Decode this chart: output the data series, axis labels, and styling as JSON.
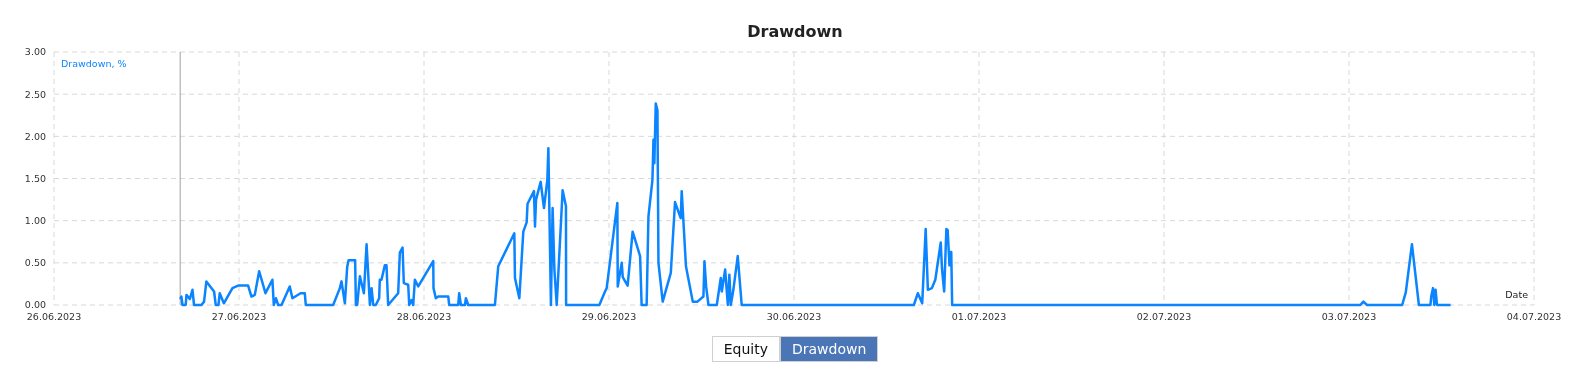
{
  "chart_data": {
    "type": "line",
    "title": "Drawdown",
    "ylabel": "Drawdown, %",
    "xlabel": "Date",
    "annotations": [
      "Equity",
      "Drawdown"
    ],
    "x": [
      "2023-06-26T16:22",
      "2023-06-26T16:32",
      "2023-06-26T16:40",
      "2023-06-26T17:05",
      "2023-06-26T17:11",
      "2023-06-26T17:37",
      "2023-06-26T17:58",
      "2023-06-26T18:10",
      "2023-06-26T19:08",
      "2023-06-26T19:28",
      "2023-06-26T19:46",
      "2023-06-26T20:46",
      "2023-06-26T20:59",
      "2023-06-26T21:20",
      "2023-06-26T21:30",
      "2023-06-26T22:02",
      "2023-06-26T23:09",
      "2023-06-26T23:53",
      "2023-06-27T01:11",
      "2023-06-27T01:37",
      "2023-06-27T02:03",
      "2023-06-27T02:37",
      "2023-06-27T03:26",
      "2023-06-27T04:20",
      "2023-06-27T04:31",
      "2023-06-27T04:47",
      "2023-06-27T05:05",
      "2023-06-27T05:31",
      "2023-06-27T06:35",
      "2023-06-27T06:56",
      "2023-06-27T07:59",
      "2023-06-27T08:32",
      "2023-06-27T08:40",
      "2023-06-27T12:13",
      "2023-06-27T13:05",
      "2023-06-27T13:18",
      "2023-06-27T13:44",
      "2023-06-27T14:02",
      "2023-06-27T14:13",
      "2023-06-27T15:04",
      "2023-06-27T15:10",
      "2023-06-27T15:20",
      "2023-06-27T15:41",
      "2023-06-27T16:12",
      "2023-06-27T16:33",
      "2023-06-27T16:59",
      "2023-06-27T17:12",
      "2023-06-27T17:25",
      "2023-06-27T17:45",
      "2023-06-27T18:11",
      "2023-06-27T18:16",
      "2023-06-27T18:29",
      "2023-06-27T18:55",
      "2023-06-27T19:08",
      "2023-06-27T19:21",
      "2023-06-27T20:39",
      "2023-06-27T20:52",
      "2023-06-27T21:13",
      "2023-06-27T21:23",
      "2023-06-27T21:57",
      "2023-06-27T22:05",
      "2023-06-27T22:23",
      "2023-06-27T22:36",
      "2023-06-27T22:49",
      "2023-06-27T23:15",
      "2023-06-28T01:12",
      "2023-06-28T01:14",
      "2023-06-28T01:32",
      "2023-06-28T01:51",
      "2023-06-28T03:09",
      "2023-06-28T03:16",
      "2023-06-28T04:26",
      "2023-06-28T04:34",
      "2023-06-28T04:47",
      "2023-06-28T05:19",
      "2023-06-28T05:26",
      "2023-06-28T05:44",
      "2023-06-28T09:12",
      "2023-06-28T09:38",
      "2023-06-28T11:43",
      "2023-06-28T11:48",
      "2023-06-28T12:22",
      "2023-06-28T12:53",
      "2023-06-28T13:19",
      "2023-06-28T13:26",
      "2023-06-28T14:16",
      "2023-06-28T14:24",
      "2023-06-28T14:32",
      "2023-06-28T15:08",
      "2023-06-28T15:34",
      "2023-06-28T16:00",
      "2023-06-28T16:08",
      "2023-06-28T16:28",
      "2023-06-28T16:41",
      "2023-06-28T16:55",
      "2023-06-28T17:13",
      "2023-06-28T17:59",
      "2023-06-28T18:25",
      "2023-06-28T18:26",
      "2023-06-28T22:45",
      "2023-06-28T23:29",
      "2023-06-28T23:42",
      "2023-06-29T01:05",
      "2023-06-29T01:08",
      "2023-06-29T01:39",
      "2023-06-29T01:47",
      "2023-06-29T02:25",
      "2023-06-29T03:04",
      "2023-06-29T04:02",
      "2023-06-29T04:14",
      "2023-06-29T04:53",
      "2023-06-29T05:07",
      "2023-06-29T05:38",
      "2023-06-29T05:46",
      "2023-06-29T05:53",
      "2023-06-29T06:04",
      "2023-06-29T06:17",
      "2023-06-29T06:25",
      "2023-06-29T06:58",
      "2023-06-29T08:01",
      "2023-06-29T08:34",
      "2023-06-29T09:18",
      "2023-06-29T09:26",
      "2023-06-29T09:59",
      "2023-06-29T10:52",
      "2023-06-29T11:28",
      "2023-06-29T12:15",
      "2023-06-29T12:23",
      "2023-06-29T12:36",
      "2023-06-29T12:54",
      "2023-06-29T13:59",
      "2023-06-29T14:30",
      "2023-06-29T14:38",
      "2023-06-29T15:04",
      "2023-06-29T15:25",
      "2023-06-29T15:37",
      "2023-06-29T15:48",
      "2023-06-29T16:08",
      "2023-06-29T16:42",
      "2023-06-29T17:13",
      "2023-06-30T15:33",
      "2023-06-30T16:04",
      "2023-06-30T16:38",
      "2023-06-30T17:05",
      "2023-06-30T17:22",
      "2023-06-30T17:53",
      "2023-06-30T18:20",
      "2023-06-30T19:02",
      "2023-06-30T19:12",
      "2023-06-30T19:29",
      "2023-06-30T19:46",
      "2023-06-30T19:56",
      "2023-06-30T20:10",
      "2023-06-30T20:24",
      "2023-06-30T20:31",
      "2023-07-03T01:28",
      "2023-07-03T01:52",
      "2023-07-03T02:20",
      "2023-07-03T06:54",
      "2023-07-03T07:22",
      "2023-07-03T08:10",
      "2023-07-03T09:04",
      "2023-07-03T10:34",
      "2023-07-03T10:40",
      "2023-07-03T10:54",
      "2023-07-03T11:04",
      "2023-07-03T11:14",
      "2023-07-03T11:25",
      "2023-07-03T13:11"
    ],
    "series": [
      {
        "color": "#0a84ff",
        "values": [
          0.07,
          0.1,
          0,
          0,
          0.12,
          0.07,
          0.18,
          0,
          0,
          0.04,
          0.28,
          0.16,
          0,
          0,
          0.14,
          0.02,
          0.2,
          0.23,
          0.23,
          0.1,
          0.12,
          0.4,
          0.14,
          0.3,
          0,
          0.08,
          0,
          0,
          0.22,
          0.08,
          0.14,
          0.14,
          0,
          0,
          0.2,
          0.28,
          0.02,
          0.45,
          0.53,
          0.53,
          0,
          0,
          0.34,
          0.14,
          0.72,
          0,
          0.2,
          0,
          0,
          0.08,
          0.3,
          0.3,
          0.47,
          0.47,
          0,
          0.14,
          0.62,
          0.68,
          0.26,
          0.24,
          0,
          0.06,
          0,
          0.3,
          0.22,
          0.52,
          0.2,
          0.08,
          0.1,
          0.1,
          0,
          0,
          0.14,
          0,
          0,
          0.08,
          0,
          0,
          0.46,
          0.85,
          0.32,
          0.08,
          0.87,
          0.98,
          1.2,
          1.35,
          0.93,
          1.25,
          1.46,
          1.15,
          1.48,
          1.86,
          0,
          1.15,
          0.42,
          0,
          1.36,
          1.17,
          0,
          0,
          0.16,
          0.2,
          1.21,
          0.22,
          0.5,
          0.33,
          0.23,
          0.87,
          0.58,
          0,
          0,
          1.05,
          1.48,
          1.96,
          1.68,
          2.39,
          2.31,
          0.5,
          0.04,
          0.38,
          1.22,
          1.03,
          1.35,
          0.46,
          0.04,
          0.04,
          0.1,
          0.52,
          0.22,
          0,
          0,
          0.32,
          0.16,
          0.42,
          0,
          0.36,
          0,
          0.18,
          0.58,
          0,
          0,
          0.14,
          0.02,
          0.9,
          0.18,
          0.2,
          0.3,
          0.74,
          0.43,
          0.16,
          0.9,
          0.89,
          0.47,
          0.63,
          0,
          0,
          0.04,
          0,
          0,
          0.15,
          0.72,
          0,
          0,
          0.1,
          0.2,
          0,
          0.18,
          0,
          0
        ]
      }
    ],
    "xlim": [
      "2023-06-26",
      "2023-07-04"
    ],
    "xticks": [
      {
        "value": "2023-06-26",
        "label": "26.06.2023"
      },
      {
        "value": "2023-06-27",
        "label": "27.06.2023"
      },
      {
        "value": "2023-06-28",
        "label": "28.06.2023"
      },
      {
        "value": "2023-06-29",
        "label": "29.06.2023"
      },
      {
        "value": "2023-06-30",
        "label": "30.06.2023"
      },
      {
        "value": "2023-07-01",
        "label": "01.07.2023"
      },
      {
        "value": "2023-07-02",
        "label": "02.07.2023"
      },
      {
        "value": "2023-07-03",
        "label": "03.07.2023"
      },
      {
        "value": "2023-07-04",
        "label": "04.07.2023"
      }
    ],
    "ylim": [
      0,
      3
    ],
    "yticks": [
      {
        "value": 0,
        "label": "0.00"
      },
      {
        "value": 0.5,
        "label": "0.50"
      },
      {
        "value": 1,
        "label": "1.00"
      },
      {
        "value": 1.5,
        "label": "1.50"
      },
      {
        "value": 2,
        "label": "2.00"
      },
      {
        "value": 2.5,
        "label": "2.50"
      },
      {
        "value": 3,
        "label": "3.00"
      }
    ],
    "ref_lines": [
      {
        "axis": "x",
        "value": "2023-06-26T16:22",
        "color": "#a0a0a0"
      }
    ],
    "grid": true
  }
}
